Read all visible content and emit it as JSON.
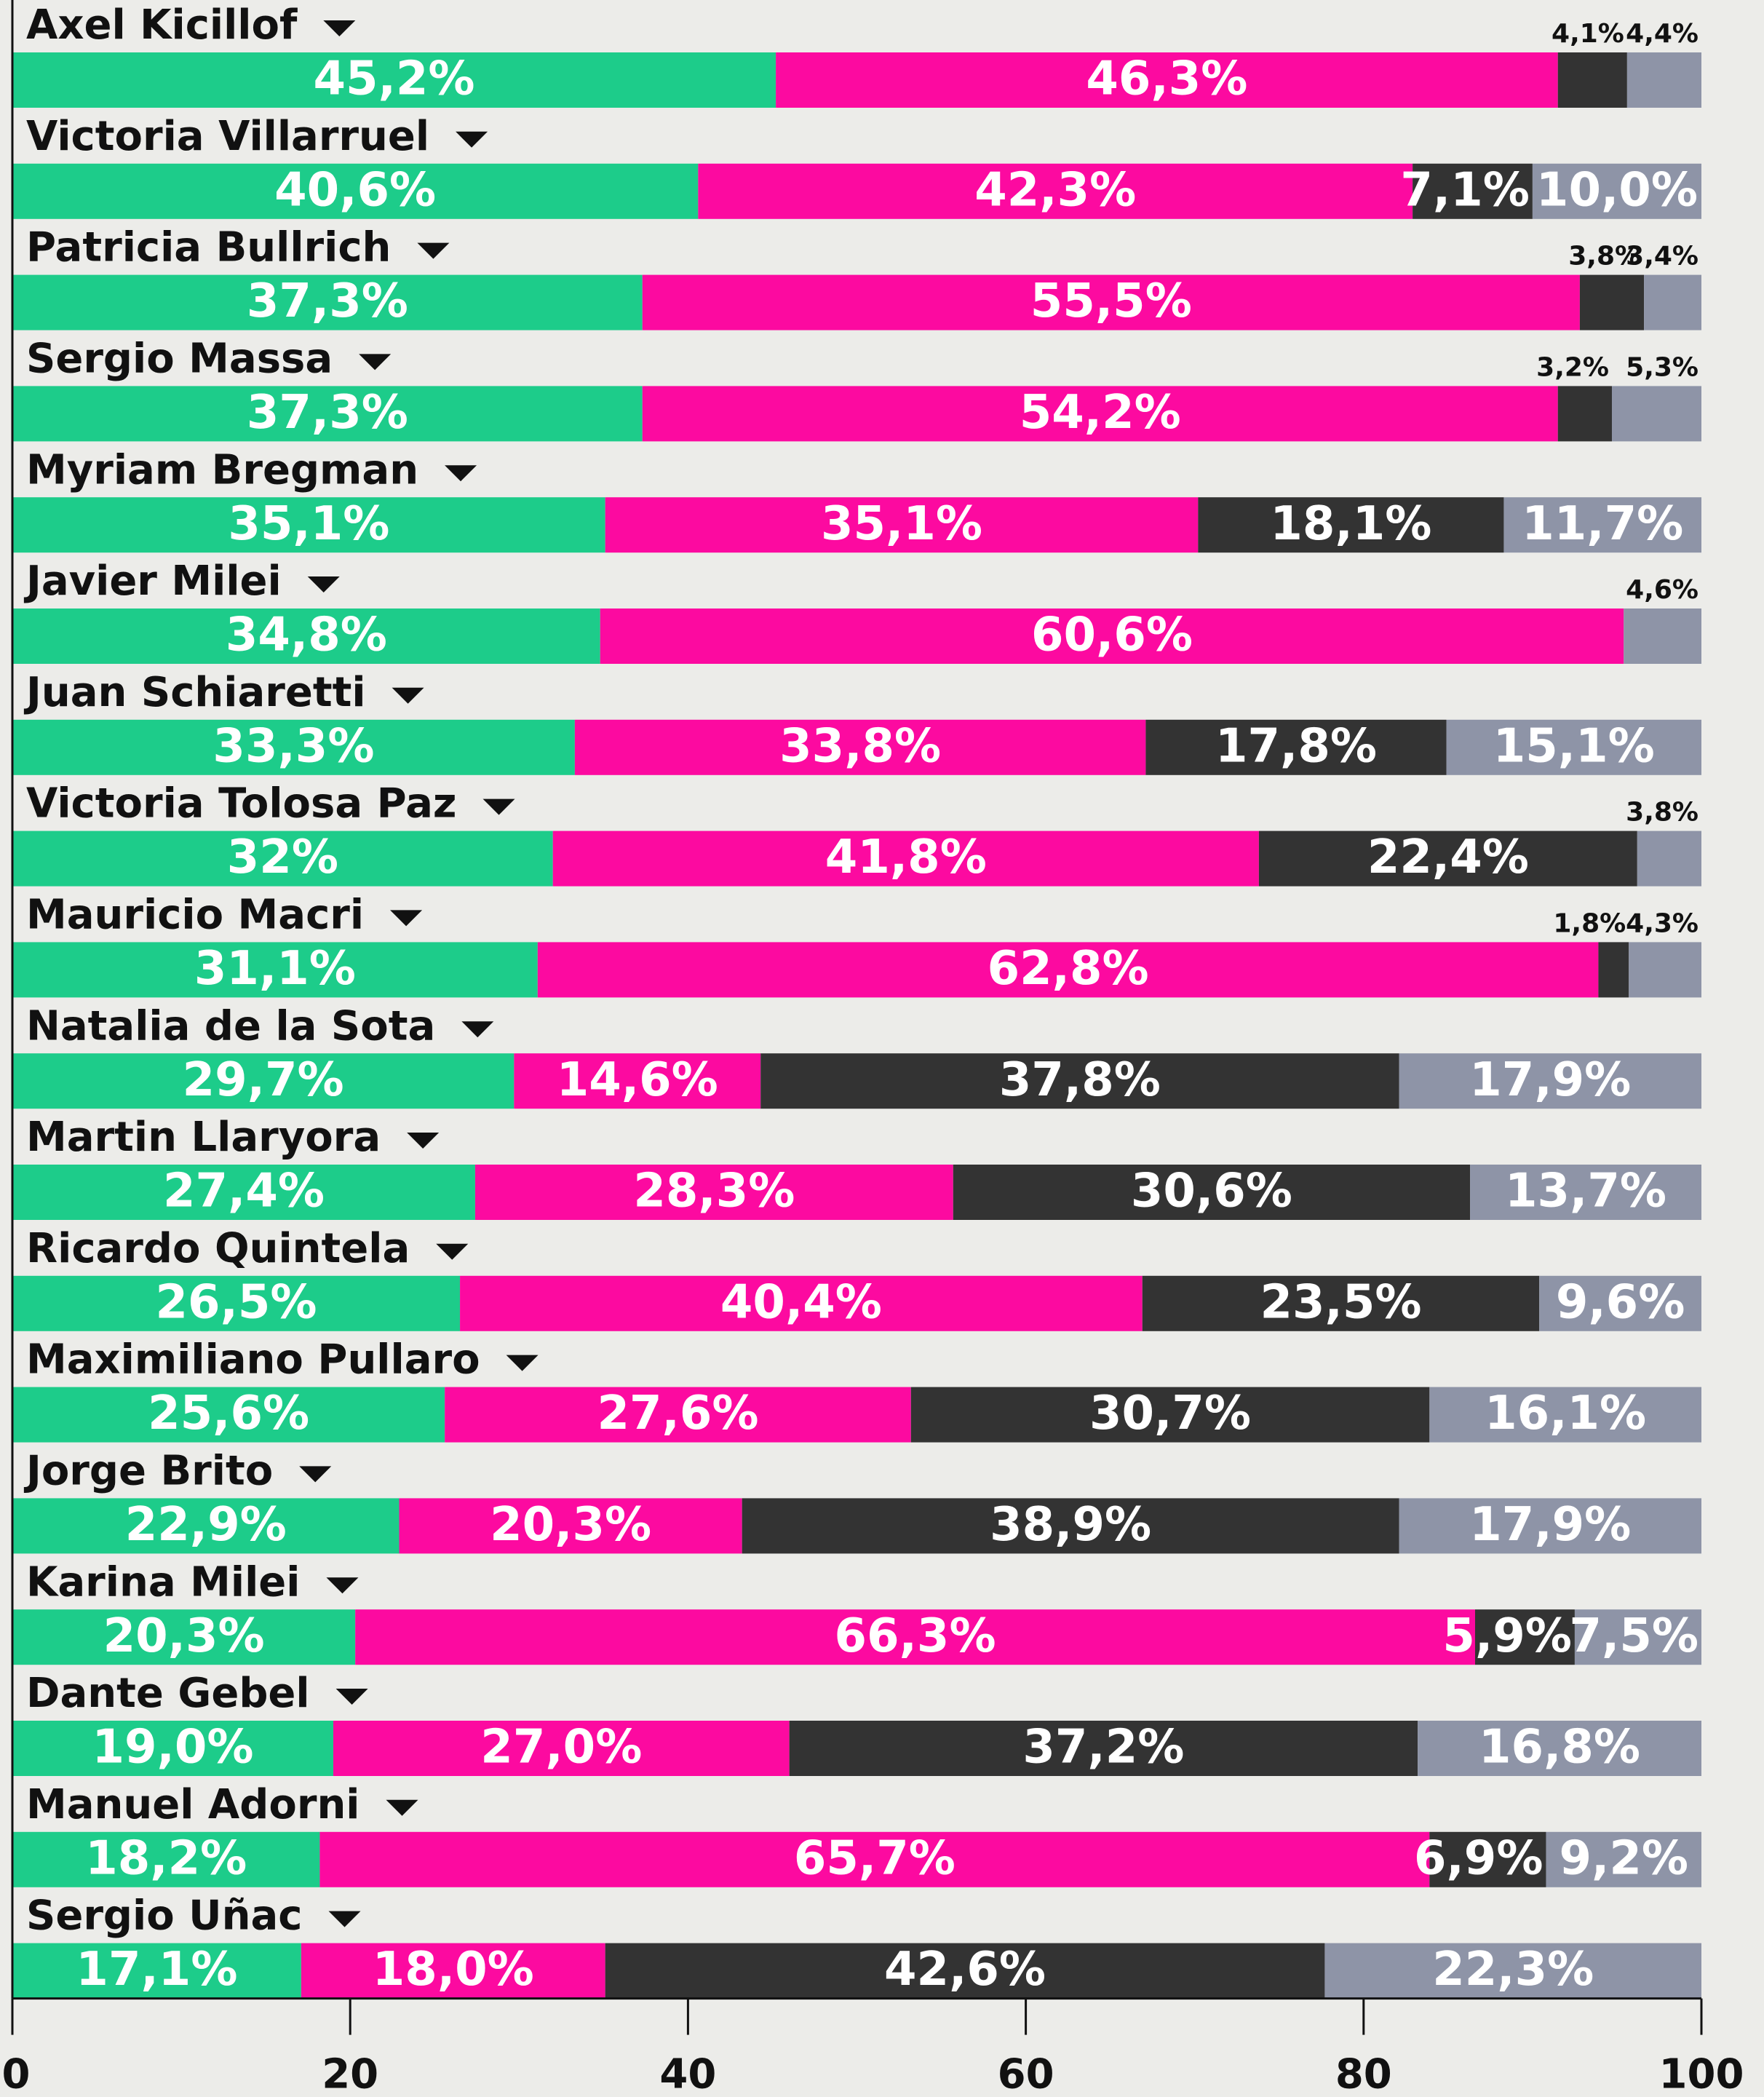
{
  "chart_data": {
    "type": "stacked_barh",
    "categories": [
      "Axel Kicillof",
      "Victoria Villarruel",
      "Patricia Bullrich",
      "Sergio Massa",
      "Myriam Bregman",
      "Javier Milei",
      "Juan Schiaretti",
      "Victoria Tolosa Paz",
      "Mauricio Macri",
      "Natalia de la Sota",
      "Martin Llaryora",
      "Ricardo Quintela",
      "Maximiliano Pullaro",
      "Jorge Brito",
      "Karina Milei",
      "Dante Gebel",
      "Manuel Adorni",
      "Sergio Uñac"
    ],
    "series": [
      {
        "color": "#1dcc8a",
        "values": [
          45.2,
          40.6,
          37.3,
          37.3,
          35.1,
          34.8,
          33.3,
          32,
          31.1,
          29.7,
          27.4,
          26.5,
          25.6,
          22.9,
          20.3,
          19.0,
          18.2,
          17.1
        ],
        "value_labels": [
          "45,2%",
          "40,6%",
          "37,3%",
          "37,3%",
          "35,1%",
          "34,8%",
          "33,3%",
          "32%",
          "31,1%",
          "29,7%",
          "27,4%",
          "26,5%",
          "25,6%",
          "22,9%",
          "20,3%",
          "19,0%",
          "18,2%",
          "17,1%"
        ]
      },
      {
        "color": "#fc0aa0",
        "values": [
          46.3,
          42.3,
          55.5,
          54.2,
          35.1,
          60.6,
          33.8,
          41.8,
          62.8,
          14.6,
          28.3,
          40.4,
          27.6,
          20.3,
          66.3,
          27.0,
          65.7,
          18.0
        ],
        "value_labels": [
          "46,3%",
          "42,3%",
          "55,5%",
          "54,2%",
          "35,1%",
          "60,6%",
          "33,8%",
          "41,8%",
          "62,8%",
          "14,6%",
          "28,3%",
          "40,4%",
          "27,6%",
          "20,3%",
          "66,3%",
          "27,0%",
          "65,7%",
          "18,0%"
        ]
      },
      {
        "color": "#333333",
        "values": [
          4.1,
          7.1,
          3.8,
          3.2,
          18.1,
          null,
          17.8,
          22.4,
          1.8,
          37.8,
          30.6,
          23.5,
          30.7,
          38.9,
          5.9,
          37.2,
          6.9,
          42.6
        ],
        "value_labels": [
          "4,1%",
          "7,1%",
          "3,8%",
          "3,2%",
          "18,1%",
          null,
          "17,8%",
          "22,4%",
          "1,8%",
          "37,8%",
          "30,6%",
          "23,5%",
          "30,7%",
          "38,9%",
          "5,9%",
          "37,2%",
          "6,9%",
          "42,6%"
        ]
      },
      {
        "color": "#8e94a7",
        "values": [
          4.4,
          10.0,
          3.4,
          5.3,
          11.7,
          4.6,
          15.1,
          3.8,
          4.3,
          17.9,
          13.7,
          9.6,
          16.1,
          17.9,
          7.5,
          16.8,
          9.2,
          22.3
        ],
        "value_labels": [
          "4,4%",
          "10,0%",
          "3,4%",
          "5,3%",
          "11,7%",
          "4,6%",
          "15,1%",
          "3,8%",
          "4,3%",
          "17,9%",
          "13,7%",
          "9,6%",
          "16,1%",
          "17,9%",
          "7,5%",
          "16,8%",
          "9,2%",
          "22,3%"
        ]
      }
    ],
    "xlim": [
      0,
      100
    ],
    "xticks": [
      0,
      20,
      40,
      60,
      80,
      100
    ]
  }
}
